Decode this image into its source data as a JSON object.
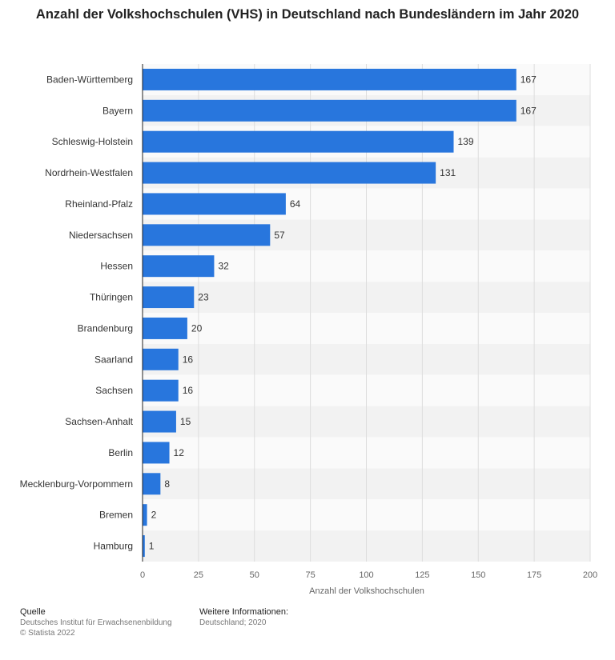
{
  "chart_data": {
    "type": "bar",
    "orientation": "horizontal",
    "title": "Anzahl der Volkshochschulen (VHS) in Deutschland nach Bundesländern im Jahr 2020",
    "categories": [
      "Baden-Württemberg",
      "Bayern",
      "Schleswig-Holstein",
      "Nordrhein-Westfalen",
      "Rheinland-Pfalz",
      "Niedersachsen",
      "Hessen",
      "Thüringen",
      "Brandenburg",
      "Saarland",
      "Sachsen",
      "Sachsen-Anhalt",
      "Berlin",
      "Mecklenburg-Vorpommern",
      "Bremen",
      "Hamburg"
    ],
    "values": [
      167,
      167,
      139,
      131,
      64,
      57,
      32,
      23,
      20,
      16,
      16,
      15,
      12,
      8,
      2,
      1
    ],
    "xlabel": "Anzahl der Volkshochschulen",
    "ylabel": "",
    "xlim": [
      0,
      200
    ],
    "ticks": [
      0,
      25,
      50,
      75,
      100,
      125,
      150,
      175,
      200
    ],
    "bar_color": "#2876dd",
    "grid": true
  },
  "footer": {
    "source_label": "Quelle",
    "source_text": "Deutsches Institut für Erwachsenenbildung",
    "copyright": "© Statista 2022",
    "info_label": "Weitere Informationen:",
    "info_text": "Deutschland; 2020"
  }
}
